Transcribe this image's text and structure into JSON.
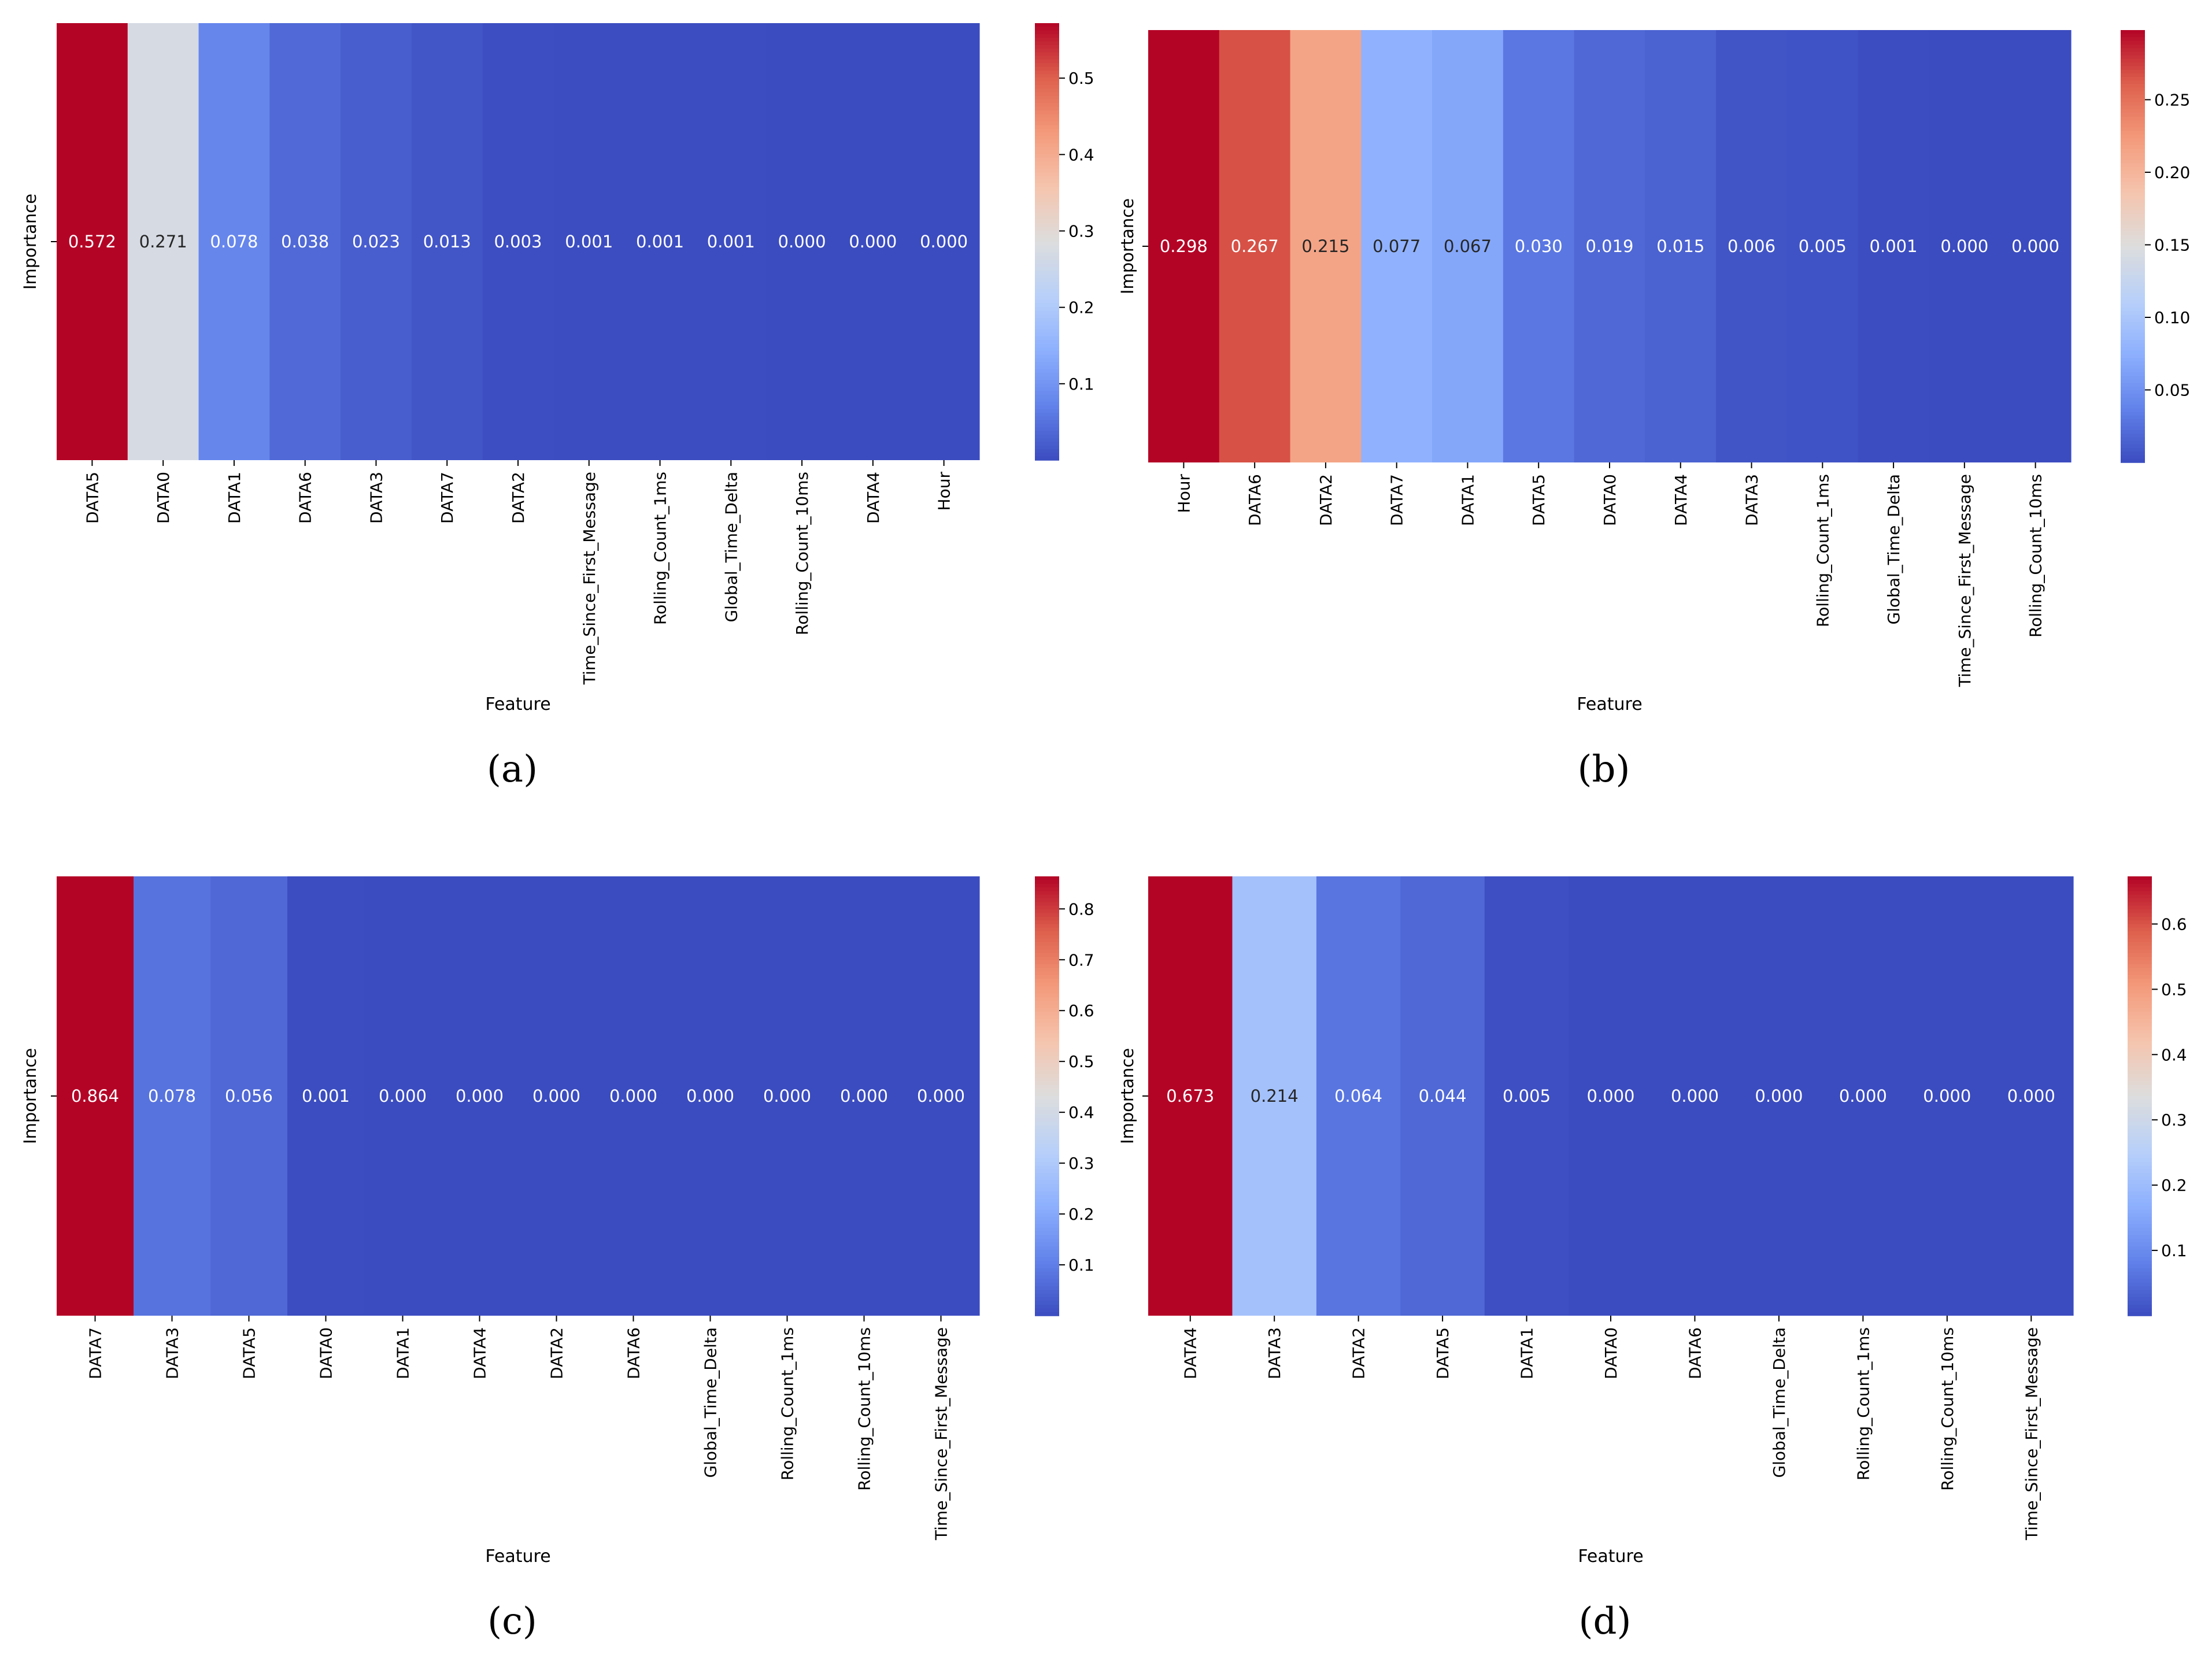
{
  "chart_data": [
    {
      "type": "heatmap",
      "panel_label": "(a)",
      "ylabel": "Importance",
      "xlabel": "Feature",
      "categories": [
        "DATA5",
        "DATA0",
        "DATA1",
        "DATA6",
        "DATA3",
        "DATA7",
        "DATA2",
        "Time_Since_First_Message",
        "Rolling_Count_1ms",
        "Global_Time_Delta",
        "Rolling_Count_10ms",
        "DATA4",
        "Hour"
      ],
      "values": [
        0.572,
        0.271,
        0.078,
        0.038,
        0.023,
        0.013,
        0.003,
        0.001,
        0.001,
        0.001,
        0.0,
        0.0,
        0.0
      ],
      "value_labels": [
        "0.572",
        "0.271",
        "0.078",
        "0.038",
        "0.023",
        "0.013",
        "0.003",
        "0.001",
        "0.001",
        "0.001",
        "0.000",
        "0.000",
        "0.000"
      ],
      "vmin": 0.0,
      "vmax": 0.572,
      "colorbar_ticks": [
        "0.1",
        "0.2",
        "0.3",
        "0.4",
        "0.5"
      ],
      "colormap": "coolwarm"
    },
    {
      "type": "heatmap",
      "panel_label": "(b)",
      "ylabel": "Importance",
      "xlabel": "Feature",
      "categories": [
        "Hour",
        "DATA6",
        "DATA2",
        "DATA7",
        "DATA1",
        "DATA5",
        "DATA0",
        "DATA4",
        "DATA3",
        "Rolling_Count_1ms",
        "Global_Time_Delta",
        "Time_Since_First_Message",
        "Rolling_Count_10ms"
      ],
      "values": [
        0.298,
        0.267,
        0.215,
        0.077,
        0.067,
        0.03,
        0.019,
        0.015,
        0.006,
        0.005,
        0.001,
        0.0,
        0.0
      ],
      "value_labels": [
        "0.298",
        "0.267",
        "0.215",
        "0.077",
        "0.067",
        "0.030",
        "0.019",
        "0.015",
        "0.006",
        "0.005",
        "0.001",
        "0.000",
        "0.000"
      ],
      "vmin": 0.0,
      "vmax": 0.298,
      "colorbar_ticks": [
        "0.05",
        "0.10",
        "0.15",
        "0.20",
        "0.25"
      ],
      "colormap": "coolwarm"
    },
    {
      "type": "heatmap",
      "panel_label": "(c)",
      "ylabel": "Importance",
      "xlabel": "Feature",
      "categories": [
        "DATA7",
        "DATA3",
        "DATA5",
        "DATA0",
        "DATA1",
        "DATA4",
        "DATA2",
        "DATA6",
        "Global_Time_Delta",
        "Rolling_Count_1ms",
        "Rolling_Count_10ms",
        "Time_Since_First_Message"
      ],
      "values": [
        0.864,
        0.078,
        0.056,
        0.001,
        0.0,
        0.0,
        0.0,
        0.0,
        0.0,
        0.0,
        0.0,
        0.0
      ],
      "value_labels": [
        "0.864",
        "0.078",
        "0.056",
        "0.001",
        "0.000",
        "0.000",
        "0.000",
        "0.000",
        "0.000",
        "0.000",
        "0.000",
        "0.000"
      ],
      "vmin": 0.0,
      "vmax": 0.864,
      "colorbar_ticks": [
        "0.1",
        "0.2",
        "0.3",
        "0.4",
        "0.5",
        "0.6",
        "0.7",
        "0.8"
      ],
      "colormap": "coolwarm"
    },
    {
      "type": "heatmap",
      "panel_label": "(d)",
      "ylabel": "Importance",
      "xlabel": "Feature",
      "categories": [
        "DATA4",
        "DATA3",
        "DATA2",
        "DATA5",
        "DATA1",
        "DATA0",
        "DATA6",
        "Global_Time_Delta",
        "Rolling_Count_1ms",
        "Rolling_Count_10ms",
        "Time_Since_First_Message"
      ],
      "values": [
        0.673,
        0.214,
        0.064,
        0.044,
        0.005,
        0.0,
        0.0,
        0.0,
        0.0,
        0.0,
        0.0
      ],
      "value_labels": [
        "0.673",
        "0.214",
        "0.064",
        "0.044",
        "0.005",
        "0.000",
        "0.000",
        "0.000",
        "0.000",
        "0.000",
        "0.000"
      ],
      "vmin": 0.0,
      "vmax": 0.673,
      "colorbar_ticks": [
        "0.1",
        "0.2",
        "0.3",
        "0.4",
        "0.5",
        "0.6"
      ],
      "colormap": "coolwarm"
    }
  ]
}
